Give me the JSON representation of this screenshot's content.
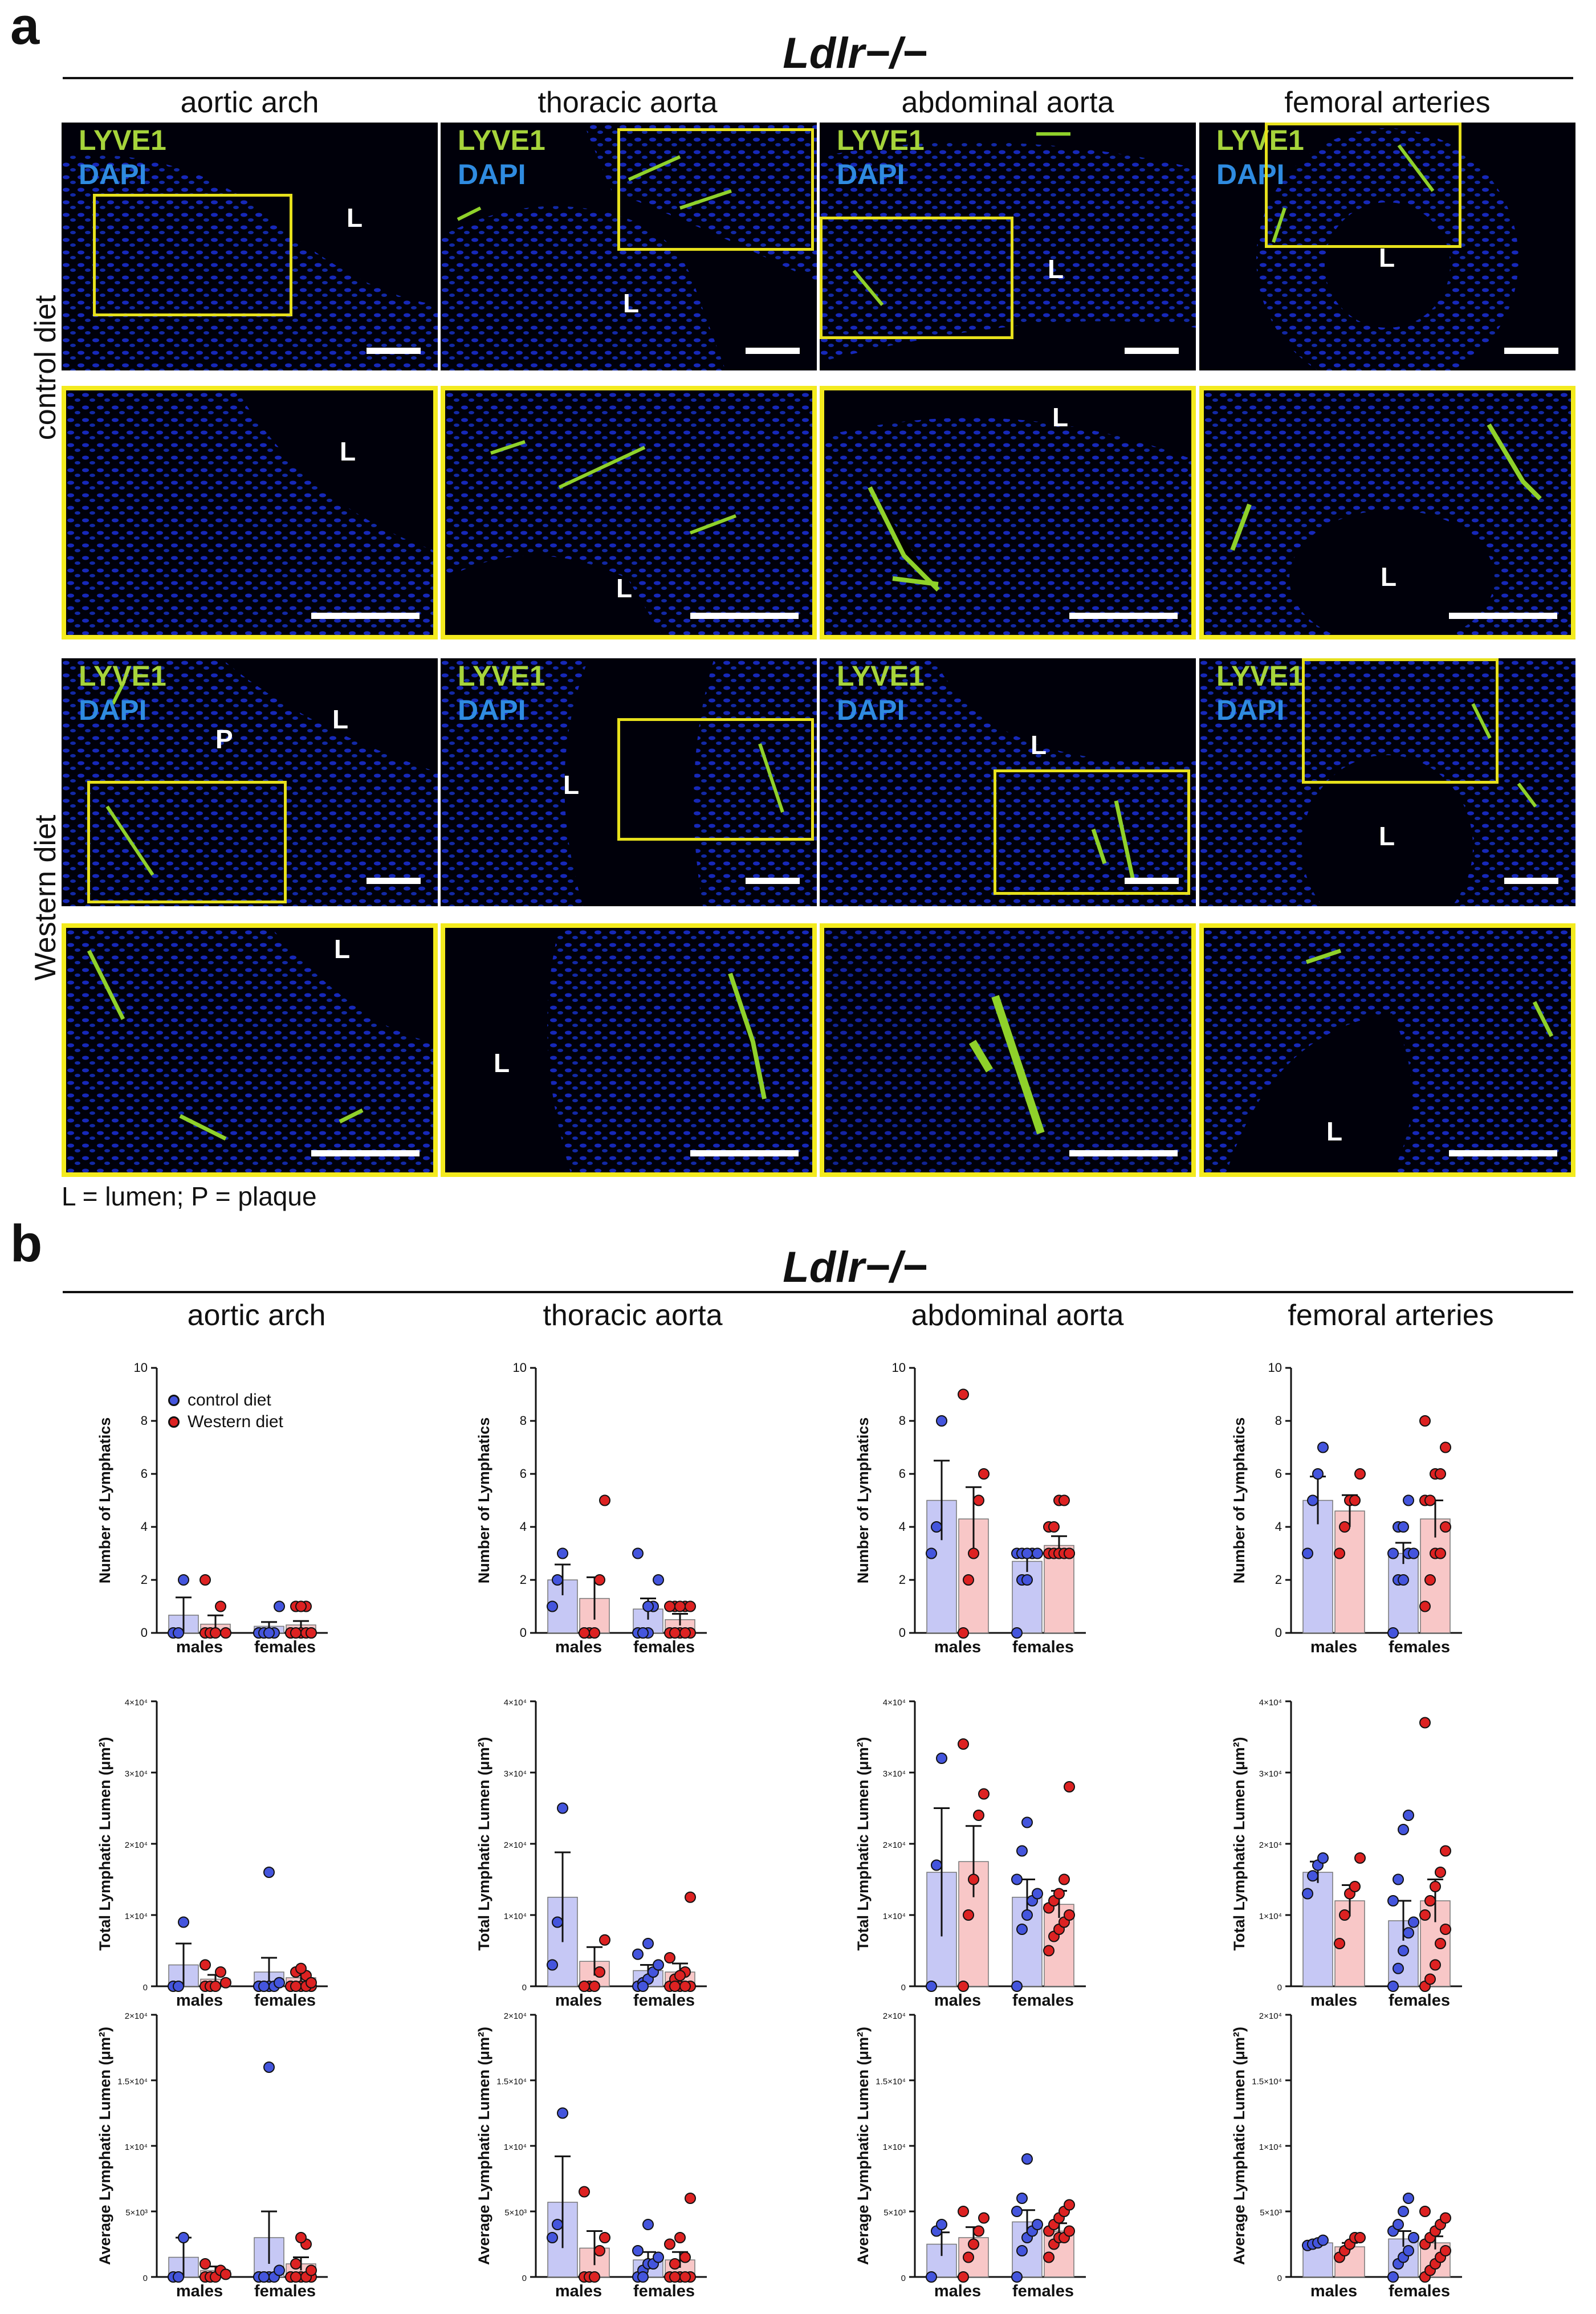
{
  "panel_a": {
    "letter": "a",
    "genotype": "Ldlr−/−",
    "columns": [
      "aortic arch",
      "thoracic aorta",
      "abdominal aorta",
      "femoral arteries"
    ],
    "row_labels": {
      "control": "control diet",
      "western": "Western diet"
    },
    "stain_labels": {
      "lyve1": "LYVE1",
      "dapi": "DAPI"
    },
    "stain_colors": {
      "lyve1": "#a6d43b",
      "dapi": "#2f8be0"
    },
    "roi_color": "#f3ea1e",
    "lumen_letter": "L",
    "plaque_letter": "P",
    "footnote": "L = lumen; P = plaque"
  },
  "panel_b": {
    "letter": "b",
    "genotype": "Ldlr−/−",
    "columns": [
      "aortic arch",
      "thoracic aorta",
      "abdominal aorta",
      "femoral arteries"
    ],
    "legend": [
      {
        "label": "control diet",
        "color": "#4455dd"
      },
      {
        "label": "Western diet",
        "color": "#dd2222"
      }
    ]
  },
  "chart_data": [
    {
      "type": "bar",
      "title": "aortic arch",
      "ylabel": "Number of Lymphatics",
      "ylim": [
        0,
        10
      ],
      "yticks": [
        "0",
        "2",
        "4",
        "6",
        "8",
        "10"
      ],
      "categories": [
        "males",
        "females"
      ],
      "series": [
        {
          "name": "control diet",
          "values": [
            0.67,
            0.25
          ],
          "sem": [
            0.67,
            0.16
          ],
          "points": [
            [
              0,
              0,
              2
            ],
            [
              0,
              0,
              0,
              0,
              1,
              0,
              0,
              0
            ]
          ]
        },
        {
          "name": "Western diet",
          "values": [
            0.33,
            0.3
          ],
          "sem": [
            0.33,
            0.15
          ],
          "points": [
            [
              0,
              0,
              0,
              1,
              0,
              2
            ],
            [
              0,
              1,
              0,
              1,
              0,
              0,
              0,
              1,
              0,
              0
            ]
          ]
        }
      ]
    },
    {
      "type": "bar",
      "title": "thoracic aorta",
      "ylabel": "Number of Lymphatics",
      "ylim": [
        0,
        10
      ],
      "yticks": [
        "0",
        "2",
        "4",
        "6",
        "8",
        "10"
      ],
      "categories": [
        "males",
        "females"
      ],
      "series": [
        {
          "name": "control diet",
          "values": [
            2.0,
            0.9
          ],
          "sem": [
            0.58,
            0.4
          ],
          "points": [
            [
              1,
              2,
              3
            ],
            [
              0,
              0,
              0,
              1,
              2,
              3,
              0,
              1
            ]
          ]
        },
        {
          "name": "Western diet",
          "values": [
            1.3,
            0.5
          ],
          "sem": [
            0.8,
            0.22
          ],
          "points": [
            [
              0,
              0,
              0,
              2,
              5,
              0
            ],
            [
              0,
              1,
              0,
              1,
              0,
              1,
              0,
              1,
              0,
              1
            ]
          ]
        }
      ]
    },
    {
      "type": "bar",
      "title": "abdominal aorta",
      "ylabel": "Number of Lymphatics",
      "ylim": [
        0,
        10
      ],
      "yticks": [
        "0",
        "2",
        "4",
        "6",
        "8",
        "10"
      ],
      "categories": [
        "males",
        "females"
      ],
      "series": [
        {
          "name": "control diet",
          "values": [
            5.0,
            2.7
          ],
          "sem": [
            1.5,
            0.4
          ],
          "points": [
            [
              3,
              4,
              8
            ],
            [
              0,
              2,
              2,
              3,
              3,
              3,
              3,
              3
            ]
          ]
        },
        {
          "name": "Western diet",
          "values": [
            4.3,
            3.3
          ],
          "sem": [
            1.2,
            0.35
          ],
          "points": [
            [
              0,
              2,
              3,
              5,
              6,
              9
            ],
            [
              3,
              3,
              3,
              3,
              3,
              4,
              4,
              5,
              5,
              3
            ]
          ]
        }
      ]
    },
    {
      "type": "bar",
      "title": "femoral arteries",
      "ylabel": "Number of Lymphatics",
      "ylim": [
        0,
        10
      ],
      "yticks": [
        "0",
        "2",
        "4",
        "6",
        "8",
        "10"
      ],
      "categories": [
        "males",
        "females"
      ],
      "series": [
        {
          "name": "control diet",
          "values": [
            5.0,
            3.0
          ],
          "sem": [
            0.9,
            0.4
          ],
          "points": [
            [
              3,
              5,
              6,
              7
            ],
            [
              0,
              2,
              2,
              3,
              3,
              3,
              4,
              4,
              5
            ]
          ]
        },
        {
          "name": "Western diet",
          "values": [
            4.6,
            4.3
          ],
          "sem": [
            0.6,
            0.7
          ],
          "points": [
            [
              3,
              4,
              5,
              5,
              6
            ],
            [
              1,
              2,
              3,
              3,
              4,
              5,
              5,
              6,
              6,
              7,
              8
            ]
          ]
        }
      ]
    },
    {
      "type": "bar",
      "title": "aortic arch",
      "ylabel": "Total Lymphatic Lumen (μm²)",
      "ylim": [
        0,
        40000
      ],
      "yticks": [
        "0",
        "1×10⁴",
        "2×10⁴",
        "3×10⁴",
        "4×10⁴"
      ],
      "categories": [
        "males",
        "females"
      ],
      "series": [
        {
          "name": "control diet",
          "values": [
            3000,
            2000
          ],
          "sem": [
            3000,
            2000
          ],
          "points": [
            [
              0,
              0,
              9000
            ],
            [
              0,
              0,
              0,
              0,
              500,
              0,
              0,
              16000
            ]
          ]
        },
        {
          "name": "Western diet",
          "values": [
            1000,
            1200
          ],
          "sem": [
            600,
            500
          ],
          "points": [
            [
              0,
              0,
              0,
              2000,
              500,
              3000
            ],
            [
              0,
              2000,
              0,
              1500,
              0,
              0,
              0,
              2500,
              0,
              500
            ]
          ]
        }
      ]
    },
    {
      "type": "bar",
      "title": "thoracic aorta",
      "ylabel": "Total Lymphatic Lumen (μm²)",
      "ylim": [
        0,
        40000
      ],
      "yticks": [
        "0",
        "1×10⁴",
        "2×10⁴",
        "3×10⁴",
        "4×10⁴"
      ],
      "categories": [
        "males",
        "females"
      ],
      "series": [
        {
          "name": "control diet",
          "values": [
            12500,
            2200
          ],
          "sem": [
            6300,
            800
          ],
          "points": [
            [
              3000,
              9000,
              25000
            ],
            [
              0,
              500,
              1000,
              2000,
              3000,
              4500,
              0,
              6000
            ]
          ]
        },
        {
          "name": "Western diet",
          "values": [
            3500,
            2000
          ],
          "sem": [
            2000,
            1200
          ],
          "points": [
            [
              0,
              0,
              0,
              2000,
              6500,
              0
            ],
            [
              0,
              1000,
              0,
              2000,
              0,
              4000,
              0,
              1500,
              0,
              12500
            ]
          ]
        }
      ]
    },
    {
      "type": "bar",
      "title": "abdominal aorta",
      "ylabel": "Total Lymphatic Lumen (μm²)",
      "ylim": [
        0,
        40000
      ],
      "yticks": [
        "0",
        "1×10⁴",
        "2×10⁴",
        "3×10⁴",
        "4×10⁴"
      ],
      "categories": [
        "males",
        "females"
      ],
      "series": [
        {
          "name": "control diet",
          "values": [
            16000,
            12500
          ],
          "sem": [
            9000,
            2500
          ],
          "points": [
            [
              0,
              17000,
              32000
            ],
            [
              0,
              8000,
              10000,
              12000,
              13000,
              15000,
              19000,
              23000
            ]
          ]
        },
        {
          "name": "Western diet",
          "values": [
            17500,
            11500
          ],
          "sem": [
            5000,
            1900
          ],
          "points": [
            [
              0,
              10000,
              15000,
              24000,
              27000,
              34000
            ],
            [
              5000,
              7000,
              8000,
              9000,
              10000,
              11000,
              12000,
              13000,
              15000,
              28000
            ]
          ]
        }
      ]
    },
    {
      "type": "bar",
      "title": "femoral arteries",
      "ylabel": "Total Lymphatic Lumen (μm²)",
      "ylim": [
        0,
        40000
      ],
      "yticks": [
        "0",
        "1×10⁴",
        "2×10⁴",
        "3×10⁴",
        "4×10⁴"
      ],
      "categories": [
        "males",
        "females"
      ],
      "series": [
        {
          "name": "control diet",
          "values": [
            16000,
            9200
          ],
          "sem": [
            1500,
            2800
          ],
          "points": [
            [
              13000,
              15500,
              17000,
              18000
            ],
            [
              0,
              2500,
              5000,
              7500,
              9000,
              12000,
              15000,
              22000,
              24000
            ]
          ]
        },
        {
          "name": "Western diet",
          "values": [
            12000,
            12000
          ],
          "sem": [
            2200,
            3000
          ],
          "points": [
            [
              6000,
              10000,
              13000,
              14000,
              18000
            ],
            [
              0,
              1000,
              3000,
              6000,
              8000,
              10000,
              12000,
              14000,
              16000,
              19000,
              37000
            ]
          ]
        }
      ]
    },
    {
      "type": "bar",
      "title": "aortic arch",
      "ylabel": "Average Lymphatic Lumen (μm²)",
      "ylim": [
        0,
        20000
      ],
      "yticks": [
        "0",
        "5×10³",
        "1×10⁴",
        "1.5×10⁴",
        "2×10⁴"
      ],
      "categories": [
        "males",
        "females"
      ],
      "series": [
        {
          "name": "control diet",
          "values": [
            1500,
            3000
          ],
          "sem": [
            1500,
            2000
          ],
          "points": [
            [
              0,
              0,
              3000
            ],
            [
              0,
              0,
              0,
              0,
              500,
              0,
              0,
              16000
            ]
          ]
        },
        {
          "name": "Western diet",
          "values": [
            500,
            1000
          ],
          "sem": [
            300,
            500
          ],
          "points": [
            [
              0,
              0,
              0,
              500,
              200,
              1000
            ],
            [
              0,
              1000,
              0,
              2500,
              0,
              0,
              0,
              3000,
              0,
              500
            ]
          ]
        }
      ]
    },
    {
      "type": "bar",
      "title": "thoracic aorta",
      "ylabel": "Average Lymphatic Lumen (μm²)",
      "ylim": [
        0,
        20000
      ],
      "yticks": [
        "0",
        "5×10³",
        "1×10⁴",
        "1.5×10⁴",
        "2×10⁴"
      ],
      "categories": [
        "males",
        "females"
      ],
      "series": [
        {
          "name": "control diet",
          "values": [
            5700,
            1300
          ],
          "sem": [
            3500,
            600
          ],
          "points": [
            [
              3000,
              4000,
              12500
            ],
            [
              0,
              500,
              1000,
              1000,
              1500,
              2000,
              0,
              4000
            ]
          ]
        },
        {
          "name": "Western diet",
          "values": [
            2200,
            1300
          ],
          "sem": [
            1300,
            600
          ],
          "points": [
            [
              0,
              0,
              0,
              2000,
              3000,
              6500
            ],
            [
              0,
              1000,
              0,
              1500,
              0,
              2500,
              0,
              3000,
              0,
              6000
            ]
          ]
        }
      ]
    },
    {
      "type": "bar",
      "title": "abdominal aorta",
      "ylabel": "Average Lymphatic Lumen (μm²)",
      "ylim": [
        0,
        20000
      ],
      "yticks": [
        "0",
        "5×10³",
        "1×10⁴",
        "1.5×10⁴",
        "2×10⁴"
      ],
      "categories": [
        "males",
        "females"
      ],
      "series": [
        {
          "name": "control diet",
          "values": [
            2500,
            4200
          ],
          "sem": [
            900,
            900
          ],
          "points": [
            [
              0,
              3500,
              4000
            ],
            [
              0,
              2000,
              3000,
              3500,
              4000,
              5000,
              6000,
              9000
            ]
          ]
        },
        {
          "name": "Western diet",
          "values": [
            3000,
            3500
          ],
          "sem": [
            800,
            600
          ],
          "points": [
            [
              0,
              1500,
              2500,
              3500,
              4500,
              5000
            ],
            [
              1500,
              2500,
              3000,
              3000,
              3500,
              3500,
              4000,
              4500,
              5000,
              5500
            ]
          ]
        }
      ]
    },
    {
      "type": "bar",
      "title": "femoral arteries",
      "ylabel": "Average Lymphatic Lumen (μm²)",
      "ylim": [
        0,
        20000
      ],
      "yticks": [
        "0",
        "5×10³",
        "1×10⁴",
        "1.5×10⁴",
        "2×10⁴"
      ],
      "categories": [
        "males",
        "females"
      ],
      "series": [
        {
          "name": "control diet",
          "values": [
            2600,
            2900
          ],
          "sem": [
            200,
            600
          ],
          "points": [
            [
              2400,
              2500,
              2600,
              2800
            ],
            [
              0,
              1000,
              1500,
              2000,
              3000,
              3500,
              4000,
              5000,
              6000
            ]
          ]
        },
        {
          "name": "Western diet",
          "values": [
            2300,
            2600
          ],
          "sem": [
            300,
            500
          ],
          "points": [
            [
              1500,
              2000,
              2500,
              3000,
              3000
            ],
            [
              0,
              500,
              1000,
              1500,
              2000,
              2500,
              3000,
              3500,
              4000,
              4500,
              5000
            ]
          ]
        }
      ]
    }
  ]
}
